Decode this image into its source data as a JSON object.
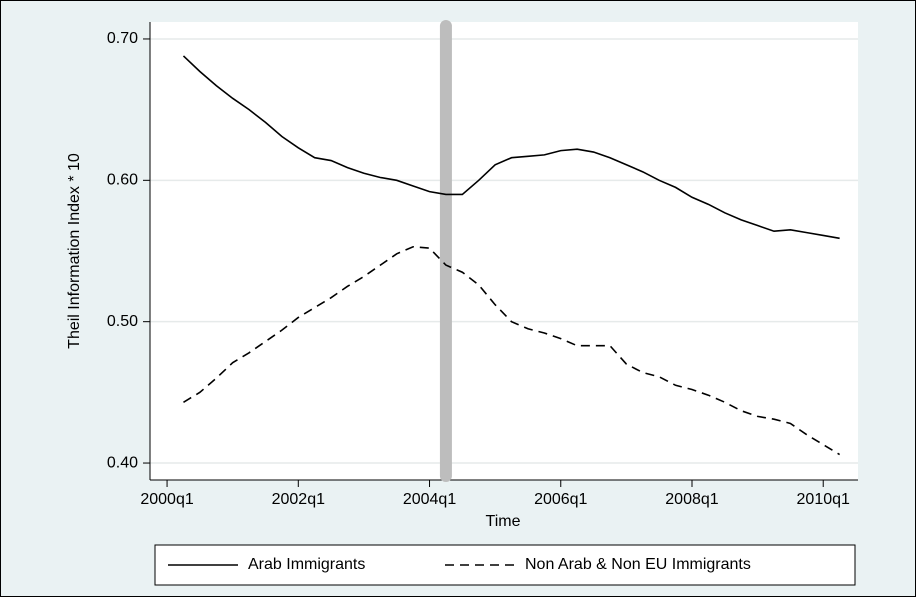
{
  "chart_data": {
    "type": "line",
    "x_label": "Time",
    "y_label": "Theil Information Index * 10",
    "x": [
      2000.25,
      2000.5,
      2000.75,
      2001,
      2001.25,
      2001.5,
      2001.75,
      2002,
      2002.25,
      2002.5,
      2002.75,
      2003,
      2003.25,
      2003.5,
      2003.75,
      2004,
      2004.25,
      2004.5,
      2004.75,
      2005,
      2005.25,
      2005.5,
      2005.75,
      2006,
      2006.25,
      2006.5,
      2006.75,
      2007,
      2007.25,
      2007.5,
      2007.75,
      2008,
      2008.25,
      2008.5,
      2008.75,
      2009,
      2009.25,
      2009.5,
      2009.75,
      2010,
      2010.25
    ],
    "series": [
      {
        "name": "Arab Immigrants",
        "color": "#000000",
        "style": "solid",
        "values": [
          0.688,
          0.677,
          0.667,
          0.658,
          0.65,
          0.641,
          0.631,
          0.623,
          0.616,
          0.614,
          0.609,
          0.605,
          0.602,
          0.6,
          0.596,
          0.592,
          0.59,
          0.59,
          0.6,
          0.611,
          0.616,
          0.617,
          0.618,
          0.621,
          0.622,
          0.62,
          0.616,
          0.611,
          0.606,
          0.6,
          0.595,
          0.588,
          0.583,
          0.577,
          0.572,
          0.568,
          0.564,
          0.565,
          0.563,
          0.561,
          0.559
        ]
      },
      {
        "name": "Non Arab & Non EU Immigrants",
        "color": "#000000",
        "style": "dashed",
        "values": [
          0.443,
          0.45,
          0.46,
          0.471,
          0.478,
          0.486,
          0.494,
          0.503,
          0.51,
          0.517,
          0.525,
          0.532,
          0.54,
          0.548,
          0.553,
          0.552,
          0.54,
          0.535,
          0.526,
          0.512,
          0.5,
          0.495,
          0.492,
          0.488,
          0.483,
          0.483,
          0.483,
          0.47,
          0.464,
          0.461,
          0.455,
          0.452,
          0.448,
          0.443,
          0.437,
          0.433,
          0.431,
          0.428,
          0.42,
          0.413,
          0.406
        ]
      }
    ],
    "vline": 2004.25,
    "vline_color": "#bdbdbd",
    "xlim": [
      1999.74,
      2010.53
    ],
    "xticks": [
      {
        "value": 2000,
        "label": "2000q1"
      },
      {
        "value": 2002,
        "label": "2002q1"
      },
      {
        "value": 2004,
        "label": "2004q1"
      },
      {
        "value": 2006,
        "label": "2006q1"
      },
      {
        "value": 2008,
        "label": "2008q1"
      },
      {
        "value": 2010,
        "label": "2010q1"
      }
    ],
    "ylim": [
      0.388,
      0.712
    ],
    "yticks": [
      {
        "value": 0.4,
        "label": "0.40"
      },
      {
        "value": 0.5,
        "label": "0.50"
      },
      {
        "value": 0.6,
        "label": "0.60"
      },
      {
        "value": 0.7,
        "label": "0.70"
      }
    ],
    "grid": true,
    "legend": "bottom"
  }
}
